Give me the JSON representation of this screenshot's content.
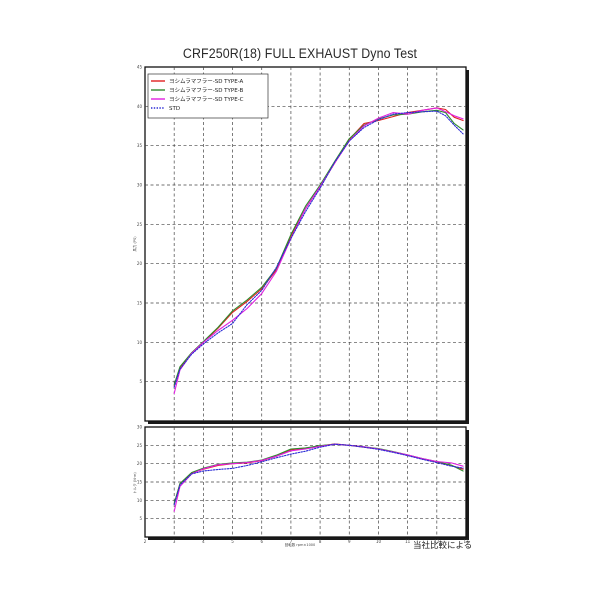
{
  "chart_data": [
    {
      "type": "line",
      "panel": "top",
      "title": "CRF250R(18) FULL EXHAUST Dyno Test",
      "ylabel": "馬力 (PS)",
      "xlim": [
        2,
        13
      ],
      "ylim": [
        0,
        45
      ],
      "x_ticks": [
        "2",
        "3",
        "4",
        "5",
        "6",
        "7",
        "8",
        "9",
        "10",
        "11",
        "12",
        "13"
      ],
      "y_ticks": [
        "45",
        "40",
        "35",
        "30",
        "25",
        "20",
        "15",
        "10",
        "5",
        ""
      ],
      "grid": true,
      "legend_position": "top-left",
      "series": [
        {
          "name": "ヨシムラマフラー-SD TYPE-A",
          "color": "#e02020",
          "dash": "solid",
          "x": [
            3.0,
            3.2,
            3.6,
            4.0,
            4.5,
            5.0,
            5.5,
            6.0,
            6.5,
            7.0,
            7.5,
            8.0,
            8.5,
            9.0,
            9.5,
            10.0,
            10.5,
            11.0,
            11.5,
            12.0,
            12.3,
            12.6,
            12.9
          ],
          "y": [
            4.5,
            6.8,
            8.6,
            10.0,
            11.8,
            13.8,
            15.2,
            16.8,
            19.2,
            23.5,
            27.0,
            29.8,
            32.8,
            35.8,
            37.8,
            38.2,
            38.7,
            39.2,
            39.5,
            39.8,
            39.6,
            38.6,
            38.2
          ]
        },
        {
          "name": "ヨシムラマフラー-SD TYPE-B",
          "color": "#2e8b2e",
          "dash": "solid",
          "x": [
            3.0,
            3.2,
            3.6,
            4.0,
            4.5,
            5.0,
            5.5,
            6.0,
            6.5,
            7.0,
            7.5,
            8.0,
            8.5,
            9.0,
            9.5,
            10.0,
            10.5,
            11.0,
            11.5,
            12.0,
            12.3,
            12.6,
            12.9
          ],
          "y": [
            4.6,
            6.9,
            8.7,
            10.1,
            11.9,
            14.0,
            15.4,
            17.0,
            19.4,
            23.7,
            27.3,
            30.0,
            33.0,
            35.9,
            37.6,
            38.4,
            38.9,
            39.0,
            39.3,
            39.5,
            39.2,
            37.8,
            37.0
          ]
        },
        {
          "name": "ヨシムラマフラー-SD TYPE-C",
          "color": "#e020e0",
          "dash": "solid",
          "x": [
            3.0,
            3.2,
            3.6,
            4.0,
            4.5,
            5.0,
            5.5,
            6.0,
            6.5,
            7.0,
            7.5,
            8.0,
            8.5,
            9.0,
            9.5,
            10.0,
            10.5,
            11.0,
            11.5,
            12.0,
            12.3,
            12.6,
            12.9
          ],
          "y": [
            3.5,
            6.5,
            8.6,
            10.0,
            11.5,
            12.8,
            14.3,
            16.2,
            19.0,
            23.2,
            27.0,
            29.8,
            32.8,
            35.6,
            37.5,
            38.5,
            39.2,
            39.0,
            39.5,
            39.8,
            39.3,
            38.8,
            38.4
          ]
        },
        {
          "name": "STD",
          "color": "#2b2bd6",
          "dash": "dotted",
          "x": [
            3.0,
            3.2,
            3.6,
            4.0,
            4.5,
            5.0,
            5.5,
            6.0,
            6.5,
            7.0,
            7.5,
            8.0,
            8.5,
            9.0,
            9.5,
            10.0,
            10.5,
            11.0,
            11.5,
            12.0,
            12.3,
            12.6,
            12.9
          ],
          "y": [
            4.3,
            6.6,
            8.5,
            9.8,
            11.2,
            12.4,
            14.8,
            16.6,
            19.5,
            23.2,
            26.6,
            29.6,
            32.9,
            35.6,
            37.3,
            38.3,
            39.0,
            39.2,
            39.3,
            39.4,
            38.8,
            37.6,
            36.5
          ]
        }
      ]
    },
    {
      "type": "line",
      "panel": "bottom",
      "xlabel": "回転数  rpm×1000",
      "ylabel": "トルク (N·m)",
      "xlim": [
        2,
        13
      ],
      "ylim": [
        0,
        30
      ],
      "x_ticks": [
        "2",
        "3",
        "4",
        "5",
        "6",
        "7",
        "8",
        "9",
        "10",
        "11",
        "12",
        "13"
      ],
      "y_ticks": [
        "30",
        "25",
        "20",
        "15",
        "10",
        "5",
        ""
      ],
      "grid": true,
      "series": [
        {
          "name": "ヨシムラマフラー-SD TYPE-A",
          "color": "#e02020",
          "dash": "solid",
          "x": [
            3.0,
            3.2,
            3.6,
            4.0,
            4.5,
            5.0,
            5.5,
            6.0,
            6.5,
            7.0,
            7.5,
            8.0,
            8.5,
            9.0,
            9.5,
            10.0,
            10.5,
            11.0,
            11.5,
            12.0,
            12.5,
            12.9
          ],
          "y": [
            9.0,
            14.5,
            17.5,
            18.5,
            19.5,
            20.0,
            20.2,
            20.8,
            22.0,
            23.8,
            24.2,
            24.8,
            25.4,
            25.0,
            24.5,
            24.0,
            23.2,
            22.3,
            21.3,
            20.5,
            19.5,
            18.5
          ]
        },
        {
          "name": "ヨシムラマフラー-SD TYPE-B",
          "color": "#2e8b2e",
          "dash": "solid",
          "x": [
            3.0,
            3.2,
            3.6,
            4.0,
            4.5,
            5.0,
            5.5,
            6.0,
            6.5,
            7.0,
            7.5,
            8.0,
            8.5,
            9.0,
            9.5,
            10.0,
            10.5,
            11.0,
            11.5,
            12.0,
            12.5,
            12.9
          ],
          "y": [
            9.2,
            14.6,
            17.6,
            18.8,
            19.8,
            20.2,
            20.4,
            21.0,
            22.3,
            24.0,
            24.3,
            24.9,
            25.3,
            25.0,
            24.6,
            24.1,
            23.3,
            22.4,
            21.4,
            20.6,
            19.6,
            18.0
          ]
        },
        {
          "name": "ヨシムラマフラー-SD TYPE-C",
          "color": "#e020e0",
          "dash": "solid",
          "x": [
            3.0,
            3.2,
            3.6,
            4.0,
            4.5,
            5.0,
            5.5,
            6.0,
            6.5,
            7.0,
            7.5,
            8.0,
            8.5,
            9.0,
            9.5,
            10.0,
            10.5,
            11.0,
            11.5,
            12.0,
            12.5,
            12.9
          ],
          "y": [
            7.0,
            13.8,
            17.2,
            18.6,
            19.7,
            20.0,
            20.3,
            20.9,
            22.0,
            23.5,
            24.0,
            24.7,
            25.3,
            25.0,
            24.6,
            24.0,
            23.2,
            22.4,
            21.4,
            20.6,
            20.2,
            19.3
          ]
        },
        {
          "name": "STD",
          "color": "#2b2bd6",
          "dash": "dotted",
          "x": [
            3.0,
            3.2,
            3.6,
            4.0,
            4.5,
            5.0,
            5.5,
            6.0,
            6.5,
            7.0,
            7.5,
            8.0,
            8.5,
            9.0,
            9.5,
            10.0,
            10.5,
            11.0,
            11.5,
            12.0,
            12.5,
            12.9
          ],
          "y": [
            8.8,
            14.2,
            17.2,
            18.0,
            18.4,
            18.7,
            19.5,
            20.5,
            21.6,
            22.6,
            23.4,
            24.5,
            25.3,
            25.0,
            24.5,
            23.9,
            23.1,
            22.2,
            21.2,
            20.3,
            19.3,
            18.8
          ]
        }
      ]
    }
  ],
  "footnote": "当社比較による",
  "colors": {
    "frame": "#111111",
    "grid": "#444444",
    "background": "#ffffff"
  }
}
